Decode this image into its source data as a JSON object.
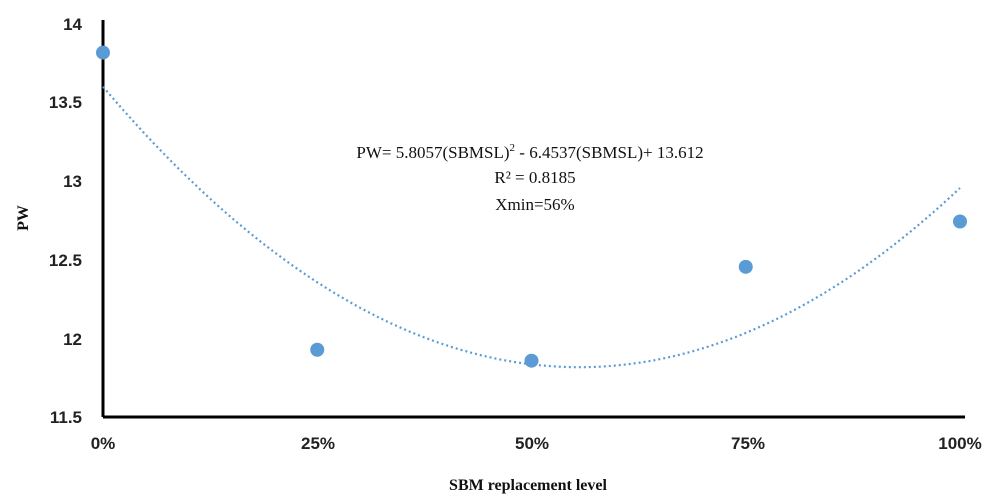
{
  "chart_data": {
    "type": "scatter",
    "xlabel": "SBM replacement level",
    "ylabel": "PW",
    "x_ticks": [
      "0%",
      "25%",
      "50%",
      "75%",
      "100%"
    ],
    "y_ticks": [
      "11.5",
      "12",
      "12.5",
      "13",
      "13.5",
      "14"
    ],
    "xlim": [
      0,
      1
    ],
    "ylim": [
      11.5,
      14
    ],
    "grid": false,
    "point_color": "#5b9bd5",
    "trend_color": "#5b9bd5",
    "points": [
      {
        "x": 0.0,
        "y": 13.83
      },
      {
        "x": 0.25,
        "y": 11.93
      },
      {
        "x": 0.5,
        "y": 11.86
      },
      {
        "x": 0.75,
        "y": 12.46
      },
      {
        "x": 1.0,
        "y": 12.75
      }
    ],
    "trendline": {
      "type": "polynomial",
      "coefficients": [
        5.8057,
        -6.4537,
        13.612
      ],
      "equation_prefix": "PW= 5.8057(SBMSL)",
      "equation_exp": "2",
      "equation_suffix": " - 6.4537(SBMSL)+  13.612",
      "r2": "R² = 0.8185",
      "xmin_note": "Xmin=56%"
    }
  }
}
